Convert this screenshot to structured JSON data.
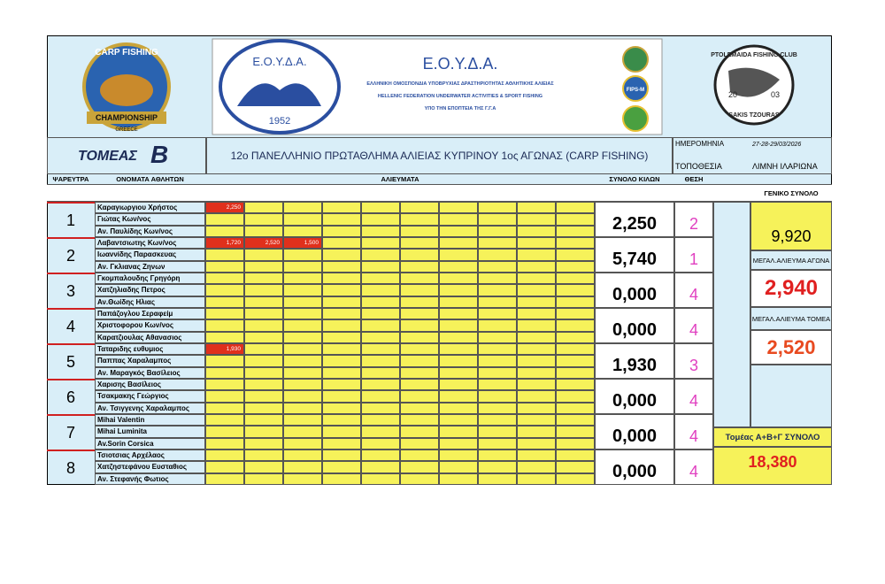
{
  "header": {
    "federation": {
      "abbr": "Ε.Ο.Υ.Δ.Α.",
      "name_gr": "ΕΛΛΗΝΙΚΗ ΟΜΟΣΠΟΝΔΙΑ ΥΠΟΒΡΥΧΙΑΣ ΔΡΑΣΤΗΡΙΟΤΗΤΑΣ ΑΘΛΗΤΙΚΗΣ ΑΛΙΕΙΑΣ",
      "name_en": "HELLENIC FEDERATION UNDERWATER ACTIVITIES & SPORT FISHING",
      "supervision": "ΥΠΟ ΤΗΝ ΕΠΟΠΤΕΙΑ ΤΗΣ Γ.Γ.Α"
    },
    "logos": {
      "carp_top": "CARP FISHING",
      "carp_banner": "CHAMPIONSHIP",
      "carp_country": "GREECE",
      "eouda_logo": "Ε.Ο.Υ.Δ.Α.",
      "eouda_year": "1952",
      "fips": "FIPS-M",
      "club_name": "PTOLEMAIDA FISHING CLUB",
      "club_year_a": "20",
      "club_year_b": "03",
      "club_founder": "SAKIS TZOURAS"
    }
  },
  "info": {
    "sector_label": "ΤΟΜΕΑΣ",
    "sector": "Β",
    "title": "12ο ΠΑΝΕΛΛΗΝΙΟ ΠΡΩΤΑΘΛΗΜΑ ΑΛΙΕΙΑΣ ΚΥΠΡΙΝΟΥ  1ος ΑΓΩΝΑΣ (CARP FISHING)",
    "date_label": "ΗΜΕΡΟΜΗΝΙΑ",
    "date": "27-28-29/03/2026",
    "location_label": "ΤΟΠΟΘΕΣΙΑ",
    "location": "ΛΙΜΝΗ ΙΛΑΡΙΩΝΑ"
  },
  "columns": {
    "stand": "ΨΑΡΕΥΤΡΑ",
    "names": "ΟΝΟΜΑΤΑ ΑΘΛΗΤΩΝ",
    "catches": "ΑΛΙΕΥΜΑΤΑ",
    "total": "ΣΥΝΟΛΟ ΚΙΛΩΝ",
    "place": "ΘΕΣΗ",
    "grand_total": "ΓΕΝΙΚΟ ΣΥΝΟΛΟ"
  },
  "teams": [
    {
      "no": "1",
      "athletes": [
        "Καραγιωργιου Χρήστος",
        "Γιώτας Κων/νος",
        "Αν. Παυλίδης Κων/νος"
      ],
      "catches": [
        [
          "2,250"
        ],
        [],
        []
      ],
      "total": "2,250",
      "place": "2"
    },
    {
      "no": "2",
      "athletes": [
        "Λαβαντσιωτης Κων/νος",
        "Ιωαννίδης Παρασκευας",
        "Αν. Γκλιανας Ζηνων"
      ],
      "catches": [
        [
          "1,720",
          "2,520",
          "1,500"
        ],
        [],
        []
      ],
      "total": "5,740",
      "place": "1"
    },
    {
      "no": "3",
      "athletes": [
        "Γκομπαλουδης Γρηγόρη",
        "Χατζηλιαδης Πετρος",
        "Αν.Θωίδης Ηλιας"
      ],
      "catches": [
        [],
        [],
        []
      ],
      "total": "0,000",
      "place": "4"
    },
    {
      "no": "4",
      "athletes": [
        "Παπάζογλου Σεραφείμ",
        "Χριστοφορου Κων/νος",
        "Καρατζιουλας Αθανασιος"
      ],
      "catches": [
        [],
        [],
        []
      ],
      "total": "0,000",
      "place": "4"
    },
    {
      "no": "5",
      "athletes": [
        "Ταταριδης ευθυμιος",
        "Παππας Χαραλαμπος",
        "Αν. Μαραγκός Βασίλειος"
      ],
      "catches": [
        [
          "1,930"
        ],
        [],
        []
      ],
      "total": "1,930",
      "place": "3"
    },
    {
      "no": "6",
      "athletes": [
        "Χαρισης Βασίλειος",
        "Τσακμακης Γεώργιος",
        "Αν. Τσιγγενης Χαραλαμπος"
      ],
      "catches": [
        [],
        [],
        []
      ],
      "total": "0,000",
      "place": "4"
    },
    {
      "no": "7",
      "athletes": [
        "Mihai Valentin",
        "Mihai Luminita",
        "Av.Sorin Corsica"
      ],
      "catches": [
        [],
        [],
        []
      ],
      "total": "0,000",
      "place": "4"
    },
    {
      "no": "8",
      "athletes": [
        "Τσιοτσιας Αρχέλαος",
        "Χατζηστεφάνου Ευσταθιος",
        "Αν. Στεφανής Φωτιος"
      ],
      "catches": [
        [],
        [],
        []
      ],
      "total": "0,000",
      "place": "4"
    }
  ],
  "summary": {
    "grand_total": "9,920",
    "biggest_match_label": "ΜΕΓΑΛ.ΑΛΙΕΥΜΑ ΑΓΩΝΑ",
    "biggest_match": "2,940",
    "biggest_sector_label": "ΜΕΓΑΛ.ΑΛΙΕΥΜΑ ΤΟΜΕΑ",
    "biggest_sector": "2,520",
    "all_sectors_label": "Τομέας Α+Β+Γ ΣΥΝΟΛΟ",
    "all_sectors": "18,380"
  }
}
